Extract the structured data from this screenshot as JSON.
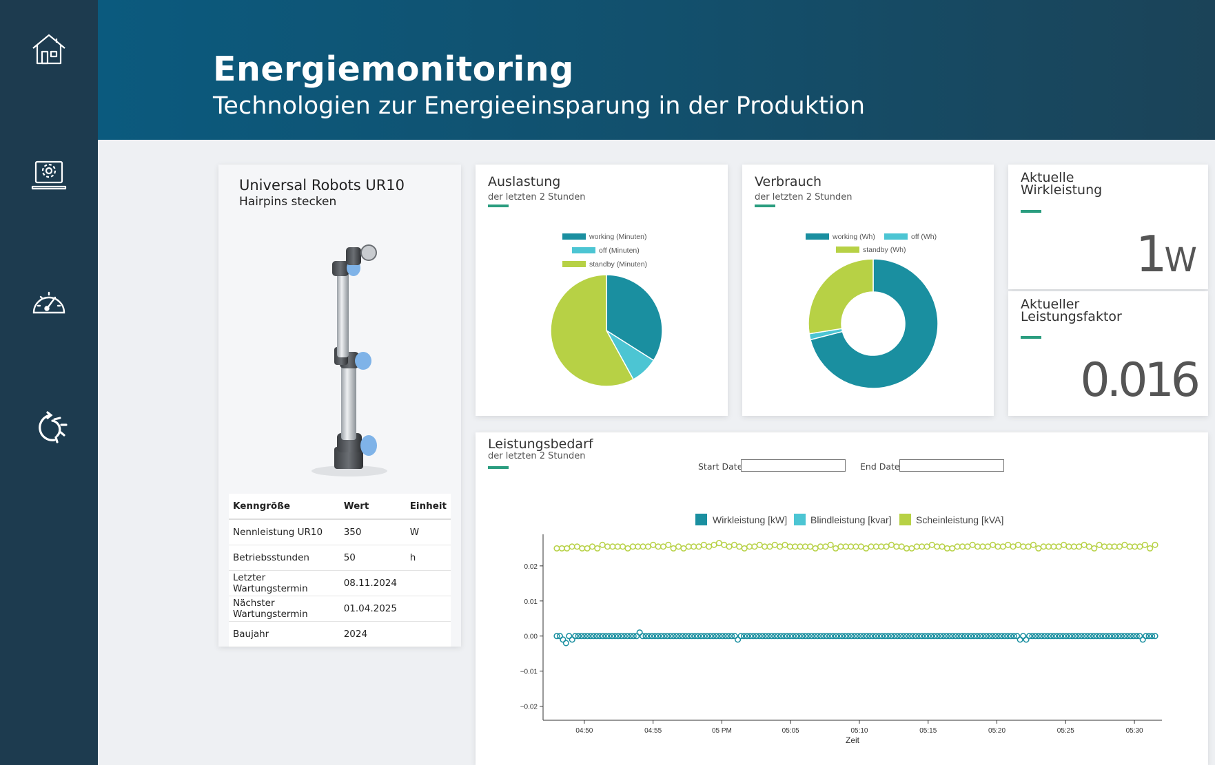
{
  "nav": {
    "items": [
      {
        "name": "home",
        "icon": "house-icon"
      },
      {
        "name": "settings",
        "icon": "laptop-gear-icon"
      },
      {
        "name": "dashboard",
        "icon": "speedometer-icon"
      },
      {
        "name": "process",
        "icon": "refresh-gear-icon"
      }
    ]
  },
  "header": {
    "title": "Energiemonitoring",
    "subtitle": "Technologien zur Energieeinsparung in der Produktion"
  },
  "robot": {
    "title": "Universal Robots UR10",
    "subtitle": "Hairpins stecken",
    "table": {
      "headers": [
        "Kenngröße",
        "Wert",
        "Einheit"
      ],
      "rows": [
        [
          "Nennleistung UR10",
          "350",
          "W"
        ],
        [
          "Betriebsstunden",
          "50",
          "h"
        ],
        [
          "Letzter Wartungstermin",
          "08.11.2024",
          ""
        ],
        [
          "Nächster Wartungstermin",
          "01.04.2025",
          ""
        ],
        [
          "Baujahr",
          "2024",
          ""
        ]
      ]
    }
  },
  "auslastung": {
    "title": "Auslastung",
    "subtitle": "der letzten 2 Stunden",
    "legend": [
      "working (Minuten)",
      "off (Minuten)",
      "standby (Minuten)"
    ]
  },
  "verbrauch": {
    "title": "Verbrauch",
    "subtitle": "der letzten 2 Stunden",
    "legend": [
      "working (Wh)",
      "off (Wh)",
      "standby (Wh)"
    ]
  },
  "wirkleistung": {
    "title_line1": "Aktuelle",
    "title_line2": "Wirkleistung",
    "value": "1",
    "unit": "W"
  },
  "leistungsfaktor": {
    "title_line1": "Aktueller",
    "title_line2": "Leistungsfaktor",
    "value": "0.016"
  },
  "leistungsbedarf": {
    "title": "Leistungsbedarf",
    "subtitle": "der letzten 2 Stunden",
    "start_label": "Start Date:",
    "end_label": "End Date:",
    "start_value": "",
    "end_value": "",
    "xlabel": "Zeit"
  },
  "colors": {
    "working": "#1a8fa0",
    "off": "#4cc5d3",
    "standby": "#b7d145",
    "accent": "#2a9d7f",
    "sidebar": "#1d3b4f"
  },
  "chart_data": [
    {
      "type": "pie",
      "categories": [
        "working (Minuten)",
        "off (Minuten)",
        "standby (Minuten)"
      ],
      "values": [
        34,
        8,
        58
      ]
    },
    {
      "type": "pie",
      "variant": "donut",
      "categories": [
        "working (Wh)",
        "off (Wh)",
        "standby (Wh)"
      ],
      "values": [
        71,
        1.5,
        27.5
      ]
    },
    {
      "type": "scatter",
      "xlabel": "Zeit",
      "ylim": [
        -0.024,
        0.029
      ],
      "yticks": [
        -0.02,
        -0.01,
        0.0,
        0.01,
        0.02
      ],
      "ytick_labels": [
        "−0.02",
        "−0.01",
        "0.00",
        "0.01",
        "0.02"
      ],
      "xtick_labels": [
        "04:50",
        "04:55",
        "05 PM",
        "05:05",
        "05:10",
        "05:15",
        "05:20",
        "05:25",
        "05:30"
      ],
      "xtick_minutes": [
        290,
        295,
        300,
        305,
        310,
        315,
        320,
        325,
        330
      ],
      "x_minutes_start": 288,
      "x_minutes_step": 0.5,
      "x_minutes_range": [
        287,
        332
      ],
      "series": [
        {
          "name": "Wirkleistung [kW]",
          "color": "#1a8fa0",
          "values": [
            0,
            0,
            -0.001,
            -0.002,
            0,
            -0.001,
            0,
            0,
            0,
            0,
            0,
            0,
            0,
            0,
            0,
            0,
            0,
            0,
            0,
            0,
            0,
            0,
            0,
            0,
            0,
            0,
            0,
            0.001,
            0,
            0,
            0,
            0,
            0,
            0,
            0,
            0,
            0,
            0,
            0,
            0,
            0,
            0,
            0,
            0,
            0,
            0,
            0,
            0,
            0,
            0,
            0,
            0,
            0,
            0,
            0,
            0,
            0,
            0,
            0,
            -0.001,
            0,
            0,
            0,
            0,
            0,
            0,
            0,
            0,
            0,
            0,
            0,
            0,
            0,
            0,
            0,
            0,
            0,
            0,
            0,
            0,
            0,
            0,
            0,
            0,
            0,
            0,
            0,
            0,
            0,
            0,
            0,
            0,
            0,
            0,
            0,
            0,
            0,
            0,
            0,
            0,
            0,
            0,
            0,
            0,
            0,
            0,
            0,
            0,
            0,
            0,
            0,
            0,
            0,
            0,
            0,
            0,
            0,
            0,
            0,
            0,
            0,
            0,
            0,
            0,
            0,
            0,
            0,
            0,
            0,
            0,
            0,
            0,
            0,
            0,
            0,
            0,
            0,
            0,
            0,
            0,
            0,
            0,
            0,
            0,
            0,
            0,
            0,
            0,
            0,
            0,
            0,
            -0.001,
            0,
            -0.001,
            0,
            0,
            0,
            0,
            0,
            0,
            0,
            0,
            0,
            0,
            0,
            0,
            0,
            0,
            0,
            0,
            0,
            0,
            0,
            0,
            0,
            0,
            0,
            0,
            0,
            0,
            0,
            0,
            0,
            0,
            0,
            0,
            0,
            0,
            0,
            0,
            0,
            -0.001,
            0,
            0,
            0,
            0
          ]
        },
        {
          "name": "Blindleistung [kvar]",
          "color": "#4cc5d3",
          "values": []
        },
        {
          "name": "Scheinleistung [kVA]",
          "color": "#b7d145",
          "values": [
            0.025,
            0.025,
            0.025,
            0.0255,
            0.0255,
            0.025,
            0.025,
            0.0255,
            0.025,
            0.026,
            0.0255,
            0.0255,
            0.0255,
            0.0255,
            0.025,
            0.0255,
            0.0255,
            0.0255,
            0.0255,
            0.026,
            0.0255,
            0.0255,
            0.026,
            0.025,
            0.0255,
            0.025,
            0.0255,
            0.0255,
            0.0255,
            0.026,
            0.0255,
            0.026,
            0.0265,
            0.026,
            0.0255,
            0.026,
            0.0255,
            0.025,
            0.0255,
            0.0255,
            0.026,
            0.0255,
            0.0255,
            0.026,
            0.0255,
            0.026,
            0.0255,
            0.0255,
            0.0255,
            0.0255,
            0.0255,
            0.025,
            0.0255,
            0.0255,
            0.026,
            0.025,
            0.0255,
            0.0255,
            0.0255,
            0.0255,
            0.0255,
            0.025,
            0.0255,
            0.0255,
            0.0255,
            0.0255,
            0.026,
            0.0255,
            0.0255,
            0.025,
            0.025,
            0.0255,
            0.0255,
            0.0255,
            0.026,
            0.0255,
            0.0255,
            0.025,
            0.025,
            0.0255,
            0.0255,
            0.0255,
            0.026,
            0.0255,
            0.0255,
            0.0255,
            0.026,
            0.0255,
            0.0255,
            0.026,
            0.0255,
            0.026,
            0.0255,
            0.0255,
            0.026,
            0.025,
            0.0255,
            0.0255,
            0.0255,
            0.0255,
            0.026,
            0.0255,
            0.0255,
            0.0255,
            0.026,
            0.0255,
            0.025,
            0.026,
            0.0255,
            0.0255,
            0.0255,
            0.0255,
            0.026,
            0.0255,
            0.0255,
            0.0255,
            0.026,
            0.025,
            0.026
          ]
        }
      ]
    }
  ]
}
